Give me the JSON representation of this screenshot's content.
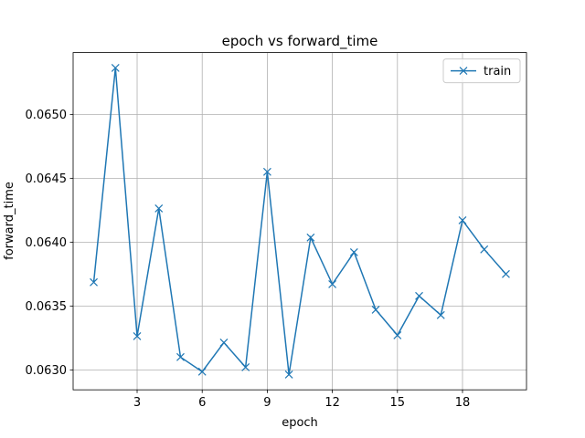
{
  "chart_data": {
    "type": "line",
    "title": "epoch vs forward_time",
    "xlabel": "epoch",
    "ylabel": "forward_time",
    "x": [
      1,
      2,
      3,
      4,
      5,
      6,
      7,
      8,
      9,
      10,
      11,
      12,
      13,
      14,
      15,
      16,
      17,
      18,
      19,
      20
    ],
    "series": [
      {
        "name": "train",
        "color": "#1f77b4",
        "marker": "x",
        "values": [
          0.063686,
          0.065364,
          0.063264,
          0.064264,
          0.0631,
          0.062986,
          0.063214,
          0.063021,
          0.06455,
          0.062964,
          0.064036,
          0.063671,
          0.063921,
          0.063471,
          0.063271,
          0.063579,
          0.063429,
          0.064171,
          0.063943,
          0.06375
        ]
      }
    ],
    "xlim": [
      0.05,
      20.95
    ],
    "xticks": [
      3,
      6,
      9,
      12,
      15,
      18
    ],
    "ylim": [
      0.062844,
      0.065484
    ],
    "yticks": [
      {
        "value": 0.063,
        "label": "0.0630"
      },
      0.0635,
      {
        "value": 0.064,
        "label": "0.0640"
      },
      0.0645,
      {
        "value": 0.065,
        "label": "0.0650"
      }
    ],
    "grid": true,
    "legend": "upper right"
  }
}
